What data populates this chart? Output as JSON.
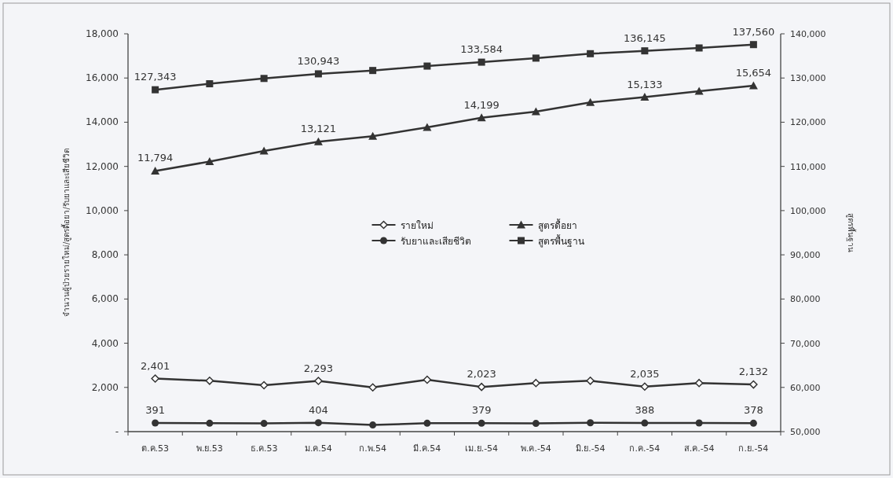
{
  "chart_data": {
    "type": "line",
    "categories": [
      "ต.ค.53",
      "พ.ย.53",
      "ธ.ค.53",
      "ม.ค.54",
      "ก.พ.54",
      "มี.ค.54",
      "เม.ย.-54",
      "พ.ค.-54",
      "มิ.ย.-54",
      "ก.ค.-54",
      "ส.ค.-54",
      "ก.ย.-54"
    ],
    "ylabel": "จำนวนผู้ป่วยรายใหม่/สูตรดื้อยา/รับยาและเสียชีวิต",
    "y2label": "สูตรพื้นฐาน",
    "ylim": [
      0,
      18000
    ],
    "yticks": [
      {
        "value": 0,
        "label": "-"
      },
      {
        "value": 2000,
        "label": "2,000"
      },
      {
        "value": 4000,
        "label": "4,000"
      },
      {
        "value": 6000,
        "label": "6,000"
      },
      {
        "value": 8000,
        "label": "8,000"
      },
      {
        "value": 10000,
        "label": "10,000"
      },
      {
        "value": 12000,
        "label": "12,000"
      },
      {
        "value": 14000,
        "label": "14,000"
      },
      {
        "value": 16000,
        "label": "16,000"
      },
      {
        "value": 18000,
        "label": "18,000"
      }
    ],
    "y2lim": [
      50000,
      140000
    ],
    "y2ticks": [
      {
        "value": 50000,
        "label": "50,000"
      },
      {
        "value": 60000,
        "label": "60,000"
      },
      {
        "value": 70000,
        "label": "70,000"
      },
      {
        "value": 80000,
        "label": "80,000"
      },
      {
        "value": 90000,
        "label": "90,000"
      },
      {
        "value": 100000,
        "label": "100,000"
      },
      {
        "value": 110000,
        "label": "110,000"
      },
      {
        "value": 120000,
        "label": "120,000"
      },
      {
        "value": 130000,
        "label": "130,000"
      },
      {
        "value": 140000,
        "label": "140,000"
      }
    ],
    "legend": "center",
    "grid": false,
    "series": [
      {
        "name": "รายใหม่",
        "color": "#333333",
        "marker": "diamond",
        "values": [
          2401,
          2300,
          2100,
          2293,
          2000,
          2350,
          2023,
          2200,
          2300,
          2035,
          2200,
          2132
        ],
        "value_labels": [
          "2,401",
          null,
          null,
          "2,293",
          null,
          null,
          "2,023",
          null,
          null,
          "2,035",
          null,
          "2,132"
        ]
      },
      {
        "name": "รับยาและเสียชีวิต",
        "color": "#333333",
        "marker": "circle",
        "values": [
          391,
          380,
          370,
          404,
          300,
          380,
          379,
          370,
          400,
          388,
          390,
          378
        ],
        "value_labels": [
          "391",
          null,
          null,
          "404",
          null,
          null,
          "379",
          null,
          null,
          "388",
          null,
          "378"
        ]
      },
      {
        "name": "สูตรดื้อยา",
        "color": "#333333",
        "marker": "triangle",
        "values": [
          11794,
          12220,
          12700,
          13121,
          13370,
          13770,
          14199,
          14480,
          14900,
          15133,
          15400,
          15654
        ],
        "value_labels": [
          "11,794",
          null,
          null,
          "13,121",
          null,
          null,
          "14,199",
          null,
          null,
          "15,133",
          null,
          "15,654"
        ]
      },
      {
        "name": "สูตรพื้นฐาน",
        "color": "#333333",
        "marker": "square",
        "axis": "y2",
        "values": [
          127343,
          128700,
          129900,
          130943,
          131700,
          132700,
          133584,
          134500,
          135500,
          136145,
          136800,
          137560
        ],
        "value_labels": [
          "127,343",
          null,
          null,
          "130,943",
          null,
          null,
          "133,584",
          null,
          null,
          "136,145",
          null,
          "137,560"
        ]
      }
    ]
  }
}
